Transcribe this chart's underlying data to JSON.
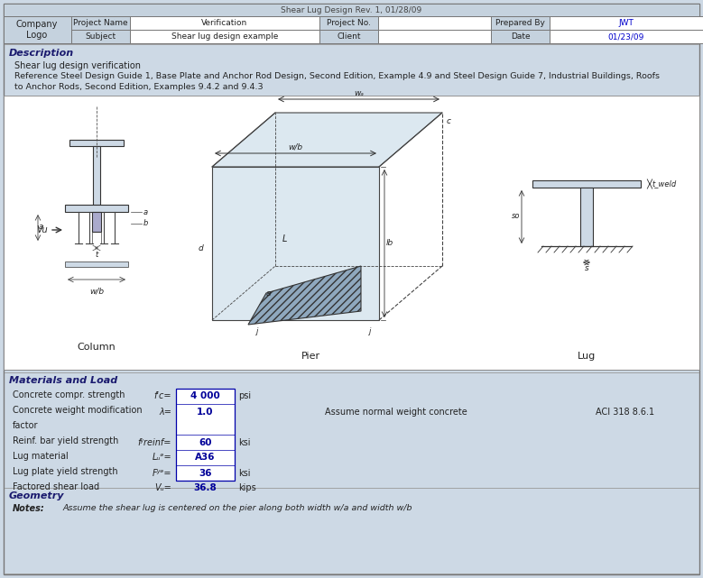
{
  "bg_color": "#cdd9e5",
  "white": "#ffffff",
  "header_bg": "#c5d2de",
  "border_color": "#888888",
  "text_dark": "#222222",
  "blue_value": "#000099",
  "title_text": "Shear Lug Design Rev. 1, 01/28/09",
  "company_text": "Company\nLogo",
  "row1": [
    "Project Name",
    "Verification",
    "Project No.",
    "",
    "Prepared By",
    "JWT"
  ],
  "row2": [
    "Subject",
    "Shear lug design example",
    "Client",
    "",
    "Date",
    "01/23/09"
  ],
  "section_desc": "Description",
  "desc1": "Shear lug design verification",
  "desc2": "Reference Steel Design Guide 1, Base Plate and Anchor Rod Design, Second Edition, Example 4.9 and Steel Design Guide 7, Industrial Buildings, Roofs",
  "desc3": "to Anchor Rods, Second Edition, Examples 9.4.2 and 9.4.3",
  "section_mat": "Materials and Load",
  "mat_rows": [
    {
      "label": "Concrete compr. strength",
      "sym": "f'c=",
      "val": "4 000",
      "unit": "psi",
      "note": "",
      "ref": ""
    },
    {
      "label": "Concrete weight modification",
      "sym": "λ=",
      "val": "1.0",
      "unit": "",
      "note": "Assume normal weight concrete",
      "ref": "ACI 318 8.6.1"
    },
    {
      "label": "factor",
      "sym": "",
      "val": "",
      "unit": "",
      "note": "",
      "ref": ""
    },
    {
      "label": "Reinf. bar yield strength",
      "sym": "fʸreinf=",
      "val": "60",
      "unit": "ksi",
      "note": "",
      "ref": ""
    },
    {
      "label": "Lug material",
      "sym": "Lᵤᵊ=",
      "val": "A36",
      "unit": "",
      "note": "",
      "ref": ""
    },
    {
      "label": "Lug plate yield strength",
      "sym": "Fʸᵊ=",
      "val": "36",
      "unit": "ksi",
      "note": "",
      "ref": ""
    },
    {
      "label": "Factored shear load",
      "sym": "Vᵤ=",
      "val": "36.8",
      "unit": "kips",
      "note": "",
      "ref": ""
    }
  ],
  "section_geom": "Geometry",
  "notes_lbl": "Notes:",
  "notes_txt": "Assume the shear lug is centered on the pier along both width w/a and width w/b",
  "diag_labels": [
    "Column",
    "Pier",
    "Lug"
  ]
}
